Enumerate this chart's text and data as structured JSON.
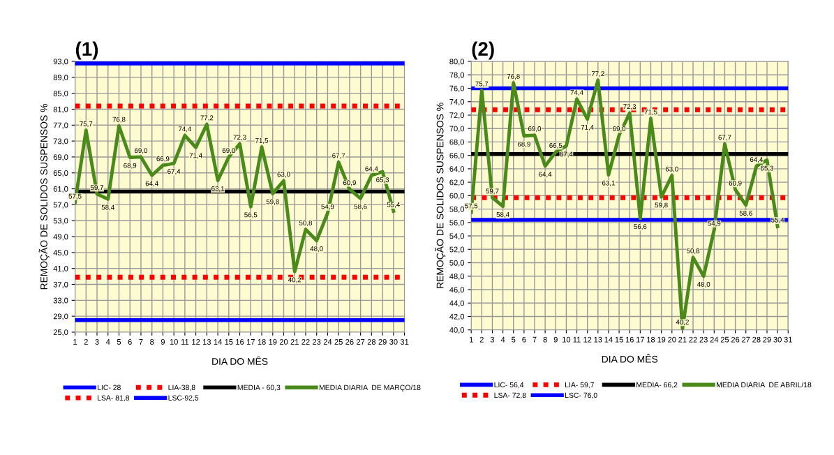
{
  "chart_data": [
    {
      "type": "line",
      "title": "(1)",
      "xlabel": "DIA DO MÊS",
      "ylabel": "REMOÇÃO DE SOLIDOS SUSPENSOS %",
      "x": [
        1,
        2,
        3,
        4,
        5,
        6,
        7,
        8,
        9,
        10,
        11,
        12,
        13,
        14,
        15,
        16,
        17,
        18,
        19,
        20,
        21,
        22,
        23,
        24,
        25,
        26,
        27,
        28,
        29,
        30
      ],
      "series": [
        {
          "name": "MEDIA DIARIA  DE MARÇO/18",
          "color": "#4a8a1a",
          "values": [
            57.5,
            75.7,
            59.7,
            58.4,
            76.8,
            68.9,
            69.0,
            64.4,
            66.9,
            67.4,
            74.4,
            71.4,
            77.2,
            63.1,
            69.0,
            72.3,
            56.5,
            71.5,
            59.8,
            63.0,
            40.2,
            50.8,
            48.0,
            54.9,
            67.7,
            60.9,
            58.6,
            64.4,
            65.3,
            55.4
          ],
          "value_labels": [
            "57,5",
            "75,7",
            "59,7",
            "58,4",
            "76,8",
            "68,9",
            "69,0",
            "64,4",
            "66,9",
            "67,4",
            "74,4",
            "71,4",
            "77,2",
            "63,1",
            "69,0",
            "72,3",
            "56,5",
            "71,5",
            "59,8",
            "63,0",
            "40,2",
            "50,8",
            "48,0",
            "54,9",
            "67,7",
            "60,9",
            "58,6",
            "64,4",
            "65,3",
            "55,4"
          ]
        }
      ],
      "ref_lines": [
        {
          "axis": "y",
          "value": 28,
          "label": "LIC- 28",
          "color": "#0000ff",
          "line_style": "solid"
        },
        {
          "axis": "y",
          "value": 38.8,
          "label": "LIA-38,8",
          "color": "#ff0000",
          "line_style": "dotted"
        },
        {
          "axis": "y",
          "value": 60.3,
          "label": "MEDIA - 60,3",
          "color": "#000000",
          "line_style": "solid"
        },
        {
          "axis": "y",
          "value": 81.8,
          "label": "LSA- 81,8",
          "color": "#ff0000",
          "line_style": "dotted"
        },
        {
          "axis": "y",
          "value": 92.5,
          "label": "LSC-92,5",
          "color": "#0000ff",
          "line_style": "solid"
        }
      ],
      "xlim": [
        1,
        31
      ],
      "xticks": [
        1,
        2,
        3,
        4,
        5,
        6,
        7,
        8,
        9,
        10,
        11,
        12,
        13,
        14,
        15,
        16,
        17,
        18,
        19,
        20,
        21,
        22,
        23,
        24,
        25,
        26,
        27,
        28,
        29,
        30,
        31
      ],
      "ylim": [
        25,
        93
      ],
      "yticks": [
        {
          "value": 25,
          "label": "25,0"
        },
        {
          "value": 29,
          "label": "29,0"
        },
        {
          "value": 33,
          "label": "33,0"
        },
        {
          "value": 37,
          "label": "37,0"
        },
        {
          "value": 41,
          "label": "41,0"
        },
        {
          "value": 45,
          "label": "45,0"
        },
        {
          "value": 49,
          "label": "49,0"
        },
        {
          "value": 53,
          "label": "53,0"
        },
        {
          "value": 57,
          "label": "57,0"
        },
        {
          "value": 61,
          "label": "61,0"
        },
        {
          "value": 65,
          "label": "65,0"
        },
        {
          "value": 69,
          "label": "69,0"
        },
        {
          "value": 73,
          "label": "73,0"
        },
        {
          "value": 77,
          "label": "77,0"
        },
        {
          "value": 81,
          "label": "81,0"
        },
        {
          "value": 85,
          "label": "85,0"
        },
        {
          "value": 89,
          "label": "89,0"
        },
        {
          "value": 93,
          "label": "93,0"
        }
      ],
      "grid": true,
      "legend": "bottom",
      "marker": "none",
      "line_style": "solid"
    },
    {
      "type": "line",
      "title": "(2)",
      "xlabel": "DIA DO MÊS",
      "ylabel": "REMOÇÃO DE SOLIDOS SUSPENSOS %",
      "x": [
        1,
        2,
        3,
        4,
        5,
        6,
        7,
        8,
        9,
        10,
        11,
        12,
        13,
        14,
        15,
        16,
        17,
        18,
        19,
        20,
        21,
        22,
        23,
        24,
        25,
        26,
        27,
        28,
        29,
        30
      ],
      "series": [
        {
          "name": "MEDIA DIARIA  DE ABRIL/18",
          "color": "#4a8a1a",
          "values": [
            57.5,
            75.7,
            59.7,
            58.4,
            76.8,
            68.9,
            69.0,
            64.4,
            66.5,
            67.4,
            74.4,
            71.4,
            77.2,
            63.1,
            69.0,
            72.3,
            56.6,
            71.5,
            59.8,
            63.0,
            40.2,
            50.8,
            48.0,
            54.9,
            67.7,
            60.9,
            58.6,
            64.4,
            65.3,
            55.4
          ],
          "value_labels": [
            "57,5",
            "75,7",
            "59,7",
            "58,4",
            "76,8",
            "68,9",
            "69,0",
            "64,4",
            "66,5",
            "67,4",
            "74,4",
            "71,4",
            "77,2",
            "63,1",
            "69,0",
            "72,3",
            "56,6",
            "71,5",
            "59,8",
            "63,0",
            "40,2",
            "50,8",
            "48,0",
            "54,9",
            "67,7",
            "60,9",
            "58,6",
            "64,4",
            "65,3",
            "55,4"
          ]
        }
      ],
      "ref_lines": [
        {
          "axis": "y",
          "value": 56.4,
          "label": "LIC- 56,4",
          "color": "#0000ff",
          "line_style": "solid"
        },
        {
          "axis": "y",
          "value": 59.7,
          "label": "LIA- 59,7",
          "color": "#ff0000",
          "line_style": "dotted"
        },
        {
          "axis": "y",
          "value": 66.2,
          "label": "MEDIA- 66,2",
          "color": "#000000",
          "line_style": "solid"
        },
        {
          "axis": "y",
          "value": 72.8,
          "label": "LSA- 72,8",
          "color": "#ff0000",
          "line_style": "dotted"
        },
        {
          "axis": "y",
          "value": 76.0,
          "label": "LSC- 76,0",
          "color": "#0000ff",
          "line_style": "solid"
        }
      ],
      "xlim": [
        1,
        31
      ],
      "xticks": [
        1,
        2,
        3,
        4,
        5,
        6,
        7,
        8,
        9,
        10,
        11,
        12,
        13,
        14,
        15,
        16,
        17,
        18,
        19,
        20,
        21,
        22,
        23,
        24,
        25,
        26,
        27,
        28,
        29,
        30,
        31
      ],
      "ylim": [
        40,
        80
      ],
      "yticks": [
        {
          "value": 40,
          "label": "40,0"
        },
        {
          "value": 42,
          "label": "42,0"
        },
        {
          "value": 44,
          "label": "44,0"
        },
        {
          "value": 46,
          "label": "46,0"
        },
        {
          "value": 48,
          "label": "48,0"
        },
        {
          "value": 50,
          "label": "50,0"
        },
        {
          "value": 52,
          "label": "52,0"
        },
        {
          "value": 54,
          "label": "54,0"
        },
        {
          "value": 56,
          "label": "56,0"
        },
        {
          "value": 58,
          "label": "58,0"
        },
        {
          "value": 60,
          "label": "60,0"
        },
        {
          "value": 62,
          "label": "62,0"
        },
        {
          "value": 64,
          "label": "64,0"
        },
        {
          "value": 66,
          "label": "66,0"
        },
        {
          "value": 68,
          "label": "68,0"
        },
        {
          "value": 70,
          "label": "70,0"
        },
        {
          "value": 72,
          "label": "72,0"
        },
        {
          "value": 74,
          "label": "74,0"
        },
        {
          "value": 76,
          "label": "76,0"
        },
        {
          "value": 78,
          "label": "78,0"
        },
        {
          "value": 80,
          "label": "80,0"
        }
      ],
      "grid": true,
      "legend": "bottom",
      "marker": "none",
      "line_style": "solid"
    }
  ]
}
